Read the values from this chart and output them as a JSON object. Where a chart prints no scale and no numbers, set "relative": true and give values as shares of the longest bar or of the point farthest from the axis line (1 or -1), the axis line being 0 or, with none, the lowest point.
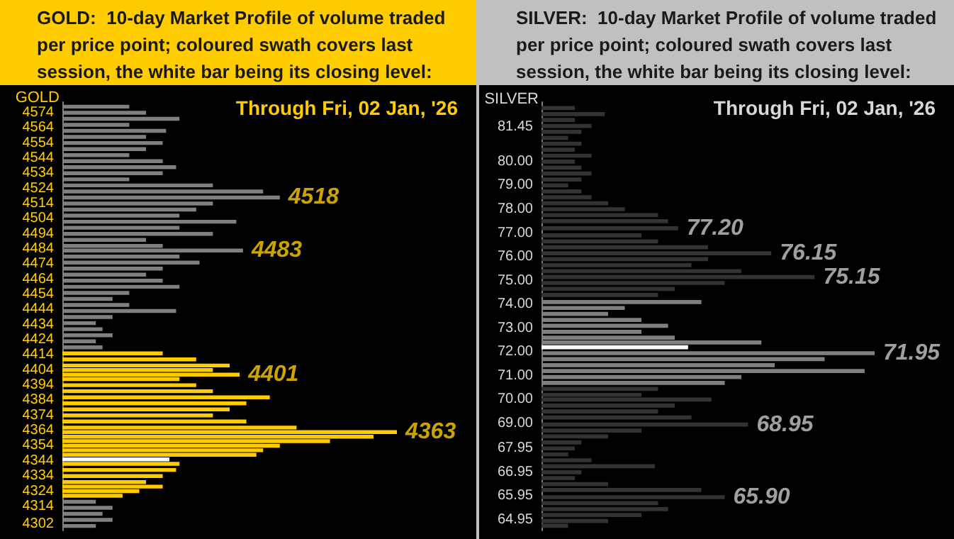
{
  "chart_data": [
    {
      "type": "bar",
      "orientation": "horizontal",
      "relative": true,
      "title": "GOLD:  10-day Market Profile of volume traded per price point; coloured swath covers last session, the white bar being its closing level:",
      "subtitle": "Through Fri, 02 Jan, '26",
      "ylabel": "GOLD",
      "x": [
        4578,
        4574,
        4570,
        4566,
        4562,
        4558,
        4554,
        4550,
        4546,
        4542,
        4538,
        4534,
        4530,
        4526,
        4522,
        4518,
        4514,
        4510,
        4506,
        4502,
        4498,
        4494,
        4490,
        4486,
        4483,
        4479,
        4475,
        4471,
        4467,
        4463,
        4459,
        4455,
        4451,
        4447,
        4443,
        4439,
        4435,
        4431,
        4427,
        4423,
        4419,
        4415,
        4411,
        4407,
        4404,
        4401,
        4398,
        4394,
        4390,
        4386,
        4382,
        4378,
        4374,
        4370,
        4366,
        4363,
        4360,
        4357,
        4354,
        4351,
        4348,
        4345,
        4342,
        4338,
        4334,
        4330,
        4327,
        4324,
        4321,
        4317,
        4313,
        4309,
        4305,
        4301
      ],
      "values": [
        0.2,
        0.25,
        0.35,
        0.2,
        0.31,
        0.25,
        0.3,
        0.25,
        0.2,
        0.3,
        0.34,
        0.3,
        0.2,
        0.45,
        0.6,
        0.65,
        0.45,
        0.4,
        0.35,
        0.52,
        0.35,
        0.45,
        0.25,
        0.3,
        0.54,
        0.35,
        0.41,
        0.3,
        0.25,
        0.3,
        0.35,
        0.2,
        0.15,
        0.2,
        0.34,
        0.15,
        0.1,
        0.12,
        0.15,
        0.1,
        0.12,
        0.3,
        0.4,
        0.5,
        0.45,
        0.53,
        0.35,
        0.4,
        0.45,
        0.62,
        0.55,
        0.5,
        0.45,
        0.55,
        0.7,
        1,
        0.93,
        0.8,
        0.65,
        0.6,
        0.58,
        0.32,
        0.35,
        0.34,
        0.3,
        0.25,
        0.3,
        0.23,
        0.18,
        0.1,
        0.15,
        0.12,
        0.15,
        0.1
      ],
      "colors": [
        "#808080",
        "#808080",
        "#808080",
        "#808080",
        "#808080",
        "#808080",
        "#808080",
        "#808080",
        "#808080",
        "#808080",
        "#808080",
        "#808080",
        "#808080",
        "#808080",
        "#808080",
        "#808080",
        "#808080",
        "#808080",
        "#808080",
        "#808080",
        "#808080",
        "#808080",
        "#808080",
        "#808080",
        "#808080",
        "#808080",
        "#808080",
        "#808080",
        "#808080",
        "#808080",
        "#808080",
        "#808080",
        "#808080",
        "#808080",
        "#808080",
        "#808080",
        "#808080",
        "#808080",
        "#808080",
        "#808080",
        "#808080",
        "#ffcc00",
        "#ffcc00",
        "#ffcc00",
        "#ffcc00",
        "#ffcc00",
        "#ffcc00",
        "#ffcc00",
        "#ffcc00",
        "#ffcc00",
        "#ffcc00",
        "#ffcc00",
        "#ffcc00",
        "#ffcc00",
        "#ffcc00",
        "#ffcc00",
        "#ffcc00",
        "#ffcc00",
        "#ffcc00",
        "#ffcc00",
        "#ffcc00",
        "#ffffff",
        "#ffcc00",
        "#ffcc00",
        "#ffcc00",
        "#ffcc00",
        "#ffcc00",
        "#ffcc00",
        "#ffcc00",
        "#808080",
        "#808080",
        "#808080",
        "#808080",
        "#808080"
      ],
      "ylim": [
        4298,
        4581
      ],
      "yticks": [
        4574,
        4564,
        4554,
        4544,
        4534,
        4524,
        4514,
        4504,
        4494,
        4484,
        4474,
        4464,
        4454,
        4444,
        4434,
        4424,
        4414,
        4404,
        4394,
        4384,
        4374,
        4364,
        4354,
        4344,
        4334,
        4324,
        4314,
        4302
      ],
      "annotations": [
        {
          "text": "4518",
          "x": 0.65,
          "y": 4518
        },
        {
          "text": "4483",
          "x": 0.54,
          "y": 4483
        },
        {
          "text": "4401",
          "x": 0.53,
          "y": 4401
        },
        {
          "text": "4363",
          "x": 1,
          "y": 4363
        }
      ]
    },
    {
      "type": "bar",
      "orientation": "horizontal",
      "relative": true,
      "title": "SILVER:  10-day Market Profile of volume traded per price point; coloured swath covers last session, the white bar being its closing level:",
      "subtitle": "Through Fri, 02 Jan, '26",
      "ylabel": "SILVER",
      "x": [
        82.25,
        82.0,
        81.75,
        81.5,
        81.25,
        81.0,
        80.75,
        80.5,
        80.25,
        80.0,
        79.75,
        79.5,
        79.25,
        79.0,
        78.75,
        78.5,
        78.25,
        78.0,
        77.75,
        77.5,
        77.2,
        76.9,
        76.65,
        76.4,
        76.15,
        75.9,
        75.65,
        75.4,
        75.15,
        74.9,
        74.65,
        74.4,
        74.1,
        73.85,
        73.6,
        73.35,
        73.1,
        72.85,
        72.6,
        72.4,
        72.2,
        71.95,
        71.7,
        71.45,
        71.2,
        70.95,
        70.7,
        70.45,
        70.2,
        70.0,
        69.75,
        69.5,
        69.25,
        68.95,
        68.7,
        68.45,
        68.2,
        67.95,
        67.7,
        67.45,
        67.2,
        66.95,
        66.7,
        66.45,
        66.2,
        65.9,
        65.65,
        65.4,
        65.15,
        64.9,
        64.7
      ],
      "values": [
        0.1,
        0.19,
        0.1,
        0.15,
        0.12,
        0.08,
        0.12,
        0.1,
        0.15,
        0.1,
        0.12,
        0.15,
        0.12,
        0.08,
        0.12,
        0.15,
        0.2,
        0.25,
        0.35,
        0.38,
        0.41,
        0.3,
        0.35,
        0.5,
        0.69,
        0.5,
        0.45,
        0.6,
        0.82,
        0.55,
        0.4,
        0.35,
        0.48,
        0.25,
        0.2,
        0.3,
        0.38,
        0.3,
        0.4,
        0.66,
        0.44,
        1,
        0.85,
        0.7,
        0.97,
        0.6,
        0.55,
        0.35,
        0.3,
        0.51,
        0.4,
        0.35,
        0.45,
        0.62,
        0.3,
        0.2,
        0.12,
        0.1,
        0.08,
        0.15,
        0.34,
        0.12,
        0.1,
        0.2,
        0.48,
        0.55,
        0.35,
        0.38,
        0.3,
        0.2,
        0.08
      ],
      "colors": [
        "#333333",
        "#333333",
        "#333333",
        "#333333",
        "#333333",
        "#333333",
        "#333333",
        "#333333",
        "#333333",
        "#333333",
        "#333333",
        "#333333",
        "#333333",
        "#333333",
        "#333333",
        "#333333",
        "#333333",
        "#333333",
        "#333333",
        "#333333",
        "#333333",
        "#333333",
        "#333333",
        "#333333",
        "#333333",
        "#333333",
        "#333333",
        "#333333",
        "#333333",
        "#333333",
        "#333333",
        "#333333",
        "#808080",
        "#808080",
        "#808080",
        "#808080",
        "#808080",
        "#808080",
        "#808080",
        "#808080",
        "#ffffff",
        "#808080",
        "#808080",
        "#808080",
        "#808080",
        "#808080",
        "#808080",
        "#333333",
        "#333333",
        "#333333",
        "#333333",
        "#333333",
        "#333333",
        "#333333",
        "#333333",
        "#333333",
        "#333333",
        "#333333",
        "#333333",
        "#333333",
        "#333333",
        "#333333",
        "#333333",
        "#333333",
        "#333333",
        "#333333",
        "#333333",
        "#333333",
        "#333333",
        "#333333",
        "#333333"
      ],
      "ylim": [
        64.5,
        82.5
      ],
      "yticks": [
        {
          "value": 81.45,
          "label": "81.45"
        },
        {
          "value": 80,
          "label": "80.00"
        },
        {
          "value": 79,
          "label": "79.00"
        },
        {
          "value": 78,
          "label": "78.00"
        },
        {
          "value": 77,
          "label": "77.00"
        },
        {
          "value": 76,
          "label": "76.00"
        },
        {
          "value": 75,
          "label": "75.00"
        },
        {
          "value": 74,
          "label": "74.00"
        },
        {
          "value": 73,
          "label": "73.00"
        },
        {
          "value": 72,
          "label": "72.00"
        },
        {
          "value": 71,
          "label": "71.00"
        },
        {
          "value": 70,
          "label": "70.00"
        },
        {
          "value": 69,
          "label": "69.00"
        },
        {
          "value": 67.95,
          "label": "67.95"
        },
        {
          "value": 66.95,
          "label": "66.95"
        },
        {
          "value": 65.95,
          "label": "65.95"
        },
        {
          "value": 64.95,
          "label": "64.95"
        }
      ],
      "annotations": [
        {
          "text": "77.20",
          "x": 0.41,
          "y": 77.2
        },
        {
          "text": "76.15",
          "x": 0.69,
          "y": 76.15
        },
        {
          "text": "75.15",
          "x": 0.82,
          "y": 75.15
        },
        {
          "text": "71.95",
          "x": 1,
          "y": 71.95
        },
        {
          "text": "68.95",
          "x": 0.62,
          "y": 68.95
        },
        {
          "text": "65.90",
          "x": 0.55,
          "y": 65.9
        }
      ]
    }
  ]
}
